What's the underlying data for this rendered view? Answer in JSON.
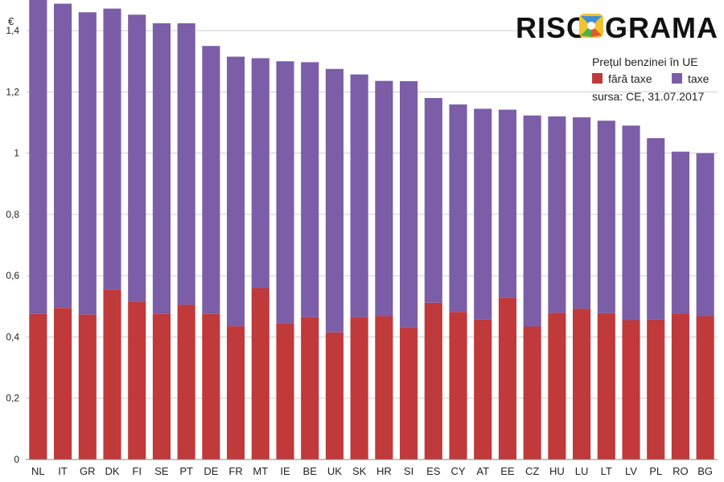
{
  "brand": {
    "logo_left": "RISC",
    "logo_right": "GRAMA"
  },
  "legend": {
    "title": "Prețul benzinei în UE",
    "source": "sursa: CE, 31.07.2017"
  },
  "colors": {
    "fara_taxe": "#c0393b",
    "taxe": "#7b5ea7",
    "grid": "#cfcfcf",
    "axis": "#888888"
  },
  "chart_data": {
    "type": "bar",
    "stacked": true,
    "unit": "€",
    "ylim": [
      0,
      1.5
    ],
    "yticks": [
      "0",
      "0,2",
      "0,4",
      "0,6",
      "0,8",
      "1",
      "1,2",
      "1,4"
    ],
    "ytick_values": [
      0,
      0.2,
      0.4,
      0.6,
      0.8,
      1.0,
      1.2,
      1.4
    ],
    "grid": true,
    "legend_position": "top-right",
    "categories": [
      "NL",
      "IT",
      "GR",
      "DK",
      "FI",
      "SE",
      "PT",
      "DE",
      "FR",
      "MT",
      "IE",
      "BE",
      "UK",
      "SK",
      "HR",
      "SI",
      "ES",
      "CY",
      "AT",
      "EE",
      "CZ",
      "HU",
      "LU",
      "LT",
      "LV",
      "PL",
      "RO",
      "BG"
    ],
    "series": [
      {
        "name": "fără taxe",
        "values": [
          0.475,
          0.495,
          0.473,
          0.555,
          0.515,
          0.475,
          0.505,
          0.475,
          0.435,
          0.56,
          0.445,
          0.465,
          0.415,
          0.465,
          0.468,
          0.432,
          0.512,
          0.482,
          0.457,
          0.528,
          0.434,
          0.479,
          0.492,
          0.478,
          0.455,
          0.457,
          0.477,
          0.468
        ]
      },
      {
        "name": "taxe",
        "values": [
          1.055,
          0.993,
          0.987,
          0.917,
          0.937,
          0.949,
          0.919,
          0.875,
          0.88,
          0.75,
          0.855,
          0.832,
          0.86,
          0.792,
          0.768,
          0.803,
          0.668,
          0.677,
          0.688,
          0.614,
          0.689,
          0.641,
          0.625,
          0.628,
          0.635,
          0.592,
          0.528,
          0.532
        ]
      }
    ]
  }
}
